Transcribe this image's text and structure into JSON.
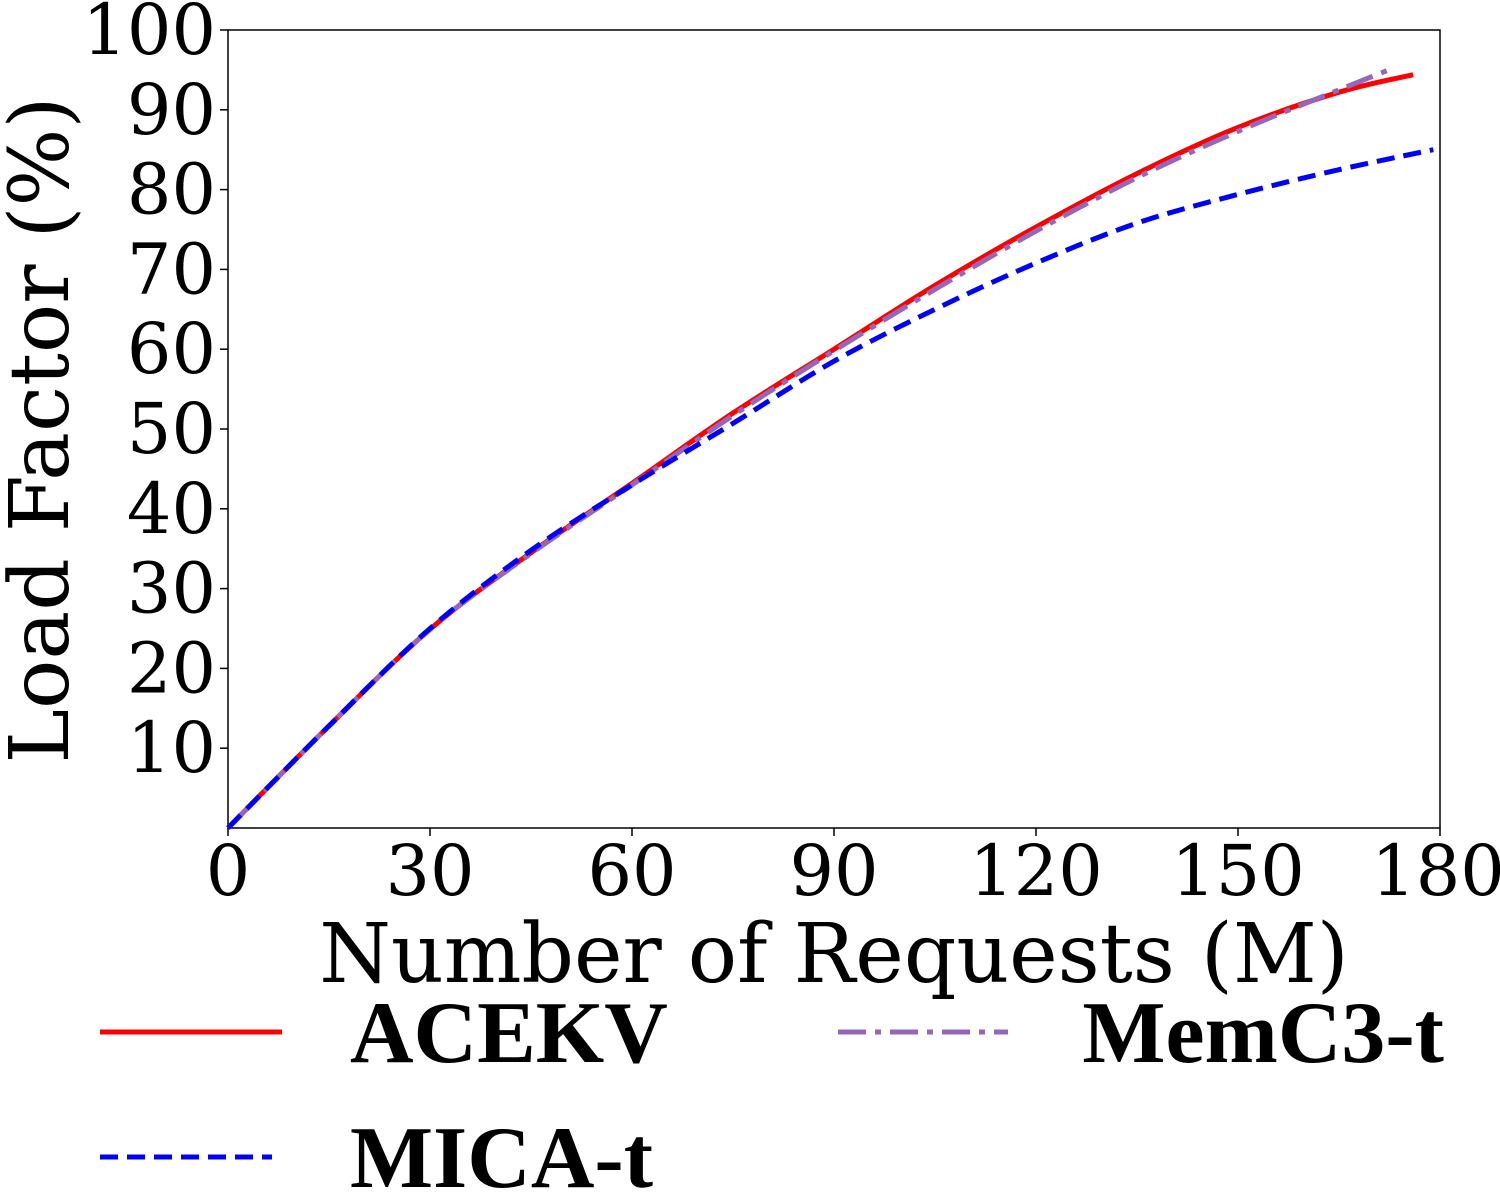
{
  "chart_data": {
    "type": "line",
    "title": "",
    "xlabel": "Number of Requests (M)",
    "ylabel": "Load Factor (%)",
    "xlim": [
      0,
      180
    ],
    "ylim": [
      0,
      100
    ],
    "xticks": [
      0,
      30,
      60,
      90,
      120,
      150,
      180
    ],
    "yticks": [
      10,
      20,
      30,
      40,
      50,
      60,
      70,
      80,
      90,
      100
    ],
    "grid": false,
    "legend_position": "bottom",
    "series": [
      {
        "name": "ACEKV",
        "color": "#ff0000",
        "style": "solid",
        "x": [
          0,
          15,
          30,
          45,
          60,
          75,
          90,
          105,
          120,
          135,
          150,
          165,
          176
        ],
        "y": [
          0,
          12.8,
          24.9,
          34.5,
          43.2,
          52.0,
          60.0,
          68.0,
          75.3,
          82.0,
          87.8,
          92.2,
          94.4
        ]
      },
      {
        "name": "MICA-t",
        "color": "#0000ff",
        "style": "dashed",
        "x": [
          0,
          15,
          30,
          45,
          60,
          75,
          90,
          105,
          120,
          135,
          150,
          165,
          179
        ],
        "y": [
          0,
          12.8,
          25.0,
          34.8,
          43.0,
          50.7,
          58.5,
          65.0,
          70.8,
          75.8,
          79.4,
          82.5,
          85.0
        ]
      },
      {
        "name": "MemC3-t",
        "color": "#9467bd",
        "style": "dashdot",
        "x": [
          0,
          15,
          30,
          45,
          60,
          75,
          90,
          105,
          120,
          135,
          150,
          165,
          173
        ],
        "y": [
          0,
          12.8,
          24.9,
          34.4,
          43.0,
          51.7,
          59.8,
          67.5,
          74.8,
          81.5,
          87.3,
          92.5,
          95.2
        ]
      }
    ]
  }
}
